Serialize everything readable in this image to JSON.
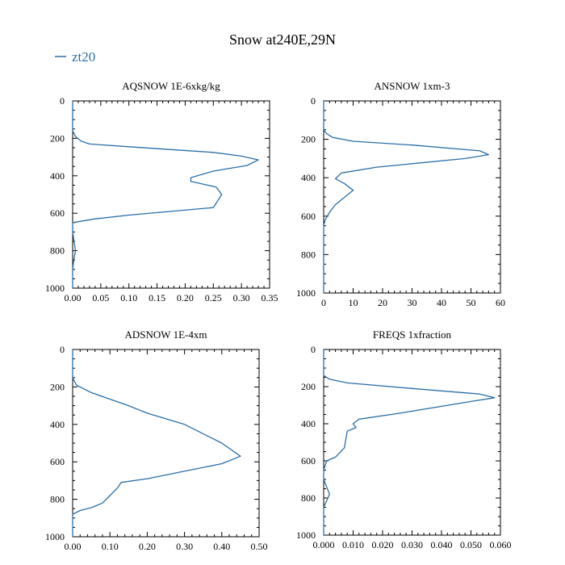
{
  "title": "Snow at240E,29N",
  "legend": {
    "entries": [
      {
        "label": "zt20",
        "color": "#2a6fa8"
      }
    ]
  },
  "chart_data": [
    {
      "type": "line",
      "title": "AQSNOW  1E-6xkg/kg",
      "xlim": [
        0,
        0.35
      ],
      "ylim": [
        1000,
        0
      ],
      "xticks": [
        "0.00",
        "0.05",
        "0.10",
        "0.15",
        "0.20",
        "0.25",
        "0.30",
        "0.35"
      ],
      "yticks": [
        "0",
        "200",
        "400",
        "600",
        "800",
        "1000"
      ],
      "series": [
        {
          "name": "zt20",
          "color": "#2a6fa8",
          "x": [
            0,
            0,
            0.005,
            0.015,
            0.03,
            0.1,
            0.25,
            0.3,
            0.33,
            0.31,
            0.25,
            0.21,
            0.21,
            0.255,
            0.265,
            0.25,
            0.1,
            0.04,
            0.0,
            0.0,
            0.005,
            0.002,
            0.0,
            0.0
          ],
          "y": [
            0,
            160,
            190,
            215,
            230,
            245,
            275,
            295,
            315,
            345,
            375,
            410,
            430,
            460,
            500,
            570,
            610,
            630,
            650,
            700,
            800,
            850,
            900,
            1000
          ]
        }
      ]
    },
    {
      "type": "line",
      "title": "ANSNOW  1xm-3",
      "xlim": [
        0,
        60
      ],
      "ylim": [
        1000,
        0
      ],
      "xticks": [
        "0",
        "10",
        "20",
        "30",
        "40",
        "50",
        "60"
      ],
      "yticks": [
        "0",
        "200",
        "400",
        "600",
        "800",
        "1000"
      ],
      "series": [
        {
          "name": "zt20",
          "color": "#2a6fa8",
          "x": [
            0,
            0,
            1,
            3,
            10,
            30,
            53,
            56,
            48,
            18,
            6,
            4,
            7,
            10,
            4,
            2,
            0.5,
            0,
            0,
            0
          ],
          "y": [
            0,
            150,
            170,
            190,
            210,
            230,
            260,
            280,
            300,
            345,
            375,
            405,
            430,
            465,
            540,
            580,
            620,
            650,
            700,
            1000
          ]
        }
      ]
    },
    {
      "type": "line",
      "title": "ADSNOW  1E-4xm",
      "xlim": [
        0,
        0.5
      ],
      "ylim": [
        1000,
        0
      ],
      "xticks": [
        "0.00",
        "0.10",
        "0.20",
        "0.30",
        "0.40",
        "0.50"
      ],
      "yticks": [
        "0",
        "200",
        "400",
        "600",
        "800",
        "1000"
      ],
      "series": [
        {
          "name": "zt20",
          "color": "#2a6fa8",
          "x": [
            0,
            0,
            0.01,
            0.05,
            0.1,
            0.15,
            0.2,
            0.3,
            0.35,
            0.4,
            0.45,
            0.4,
            0.3,
            0.2,
            0.13,
            0.12,
            0.1,
            0.08,
            0.05,
            0.02,
            0.0,
            0.0
          ],
          "y": [
            0,
            150,
            190,
            230,
            265,
            300,
            340,
            400,
            450,
            500,
            570,
            610,
            650,
            690,
            710,
            740,
            780,
            820,
            845,
            860,
            880,
            1000
          ]
        }
      ]
    },
    {
      "type": "line",
      "title": "FREQS  1xfraction",
      "xlim": [
        0,
        0.06
      ],
      "ylim": [
        1000,
        0
      ],
      "xticks": [
        "0.000",
        "0.010",
        "0.020",
        "0.030",
        "0.040",
        "0.050",
        "0.060"
      ],
      "yticks": [
        "0",
        "200",
        "400",
        "600",
        "800",
        "1000"
      ],
      "series": [
        {
          "name": "zt20",
          "color": "#2a6fa8",
          "x": [
            0,
            0,
            0.002,
            0.008,
            0.03,
            0.053,
            0.058,
            0.05,
            0.025,
            0.012,
            0.01,
            0.011,
            0.008,
            0.007,
            0.004,
            0.001,
            0.0,
            0.0,
            0.002,
            0.0,
            0.0
          ],
          "y": [
            0,
            140,
            160,
            180,
            210,
            240,
            260,
            280,
            345,
            375,
            400,
            420,
            440,
            530,
            580,
            600,
            650,
            700,
            780,
            850,
            1000
          ]
        }
      ]
    }
  ]
}
